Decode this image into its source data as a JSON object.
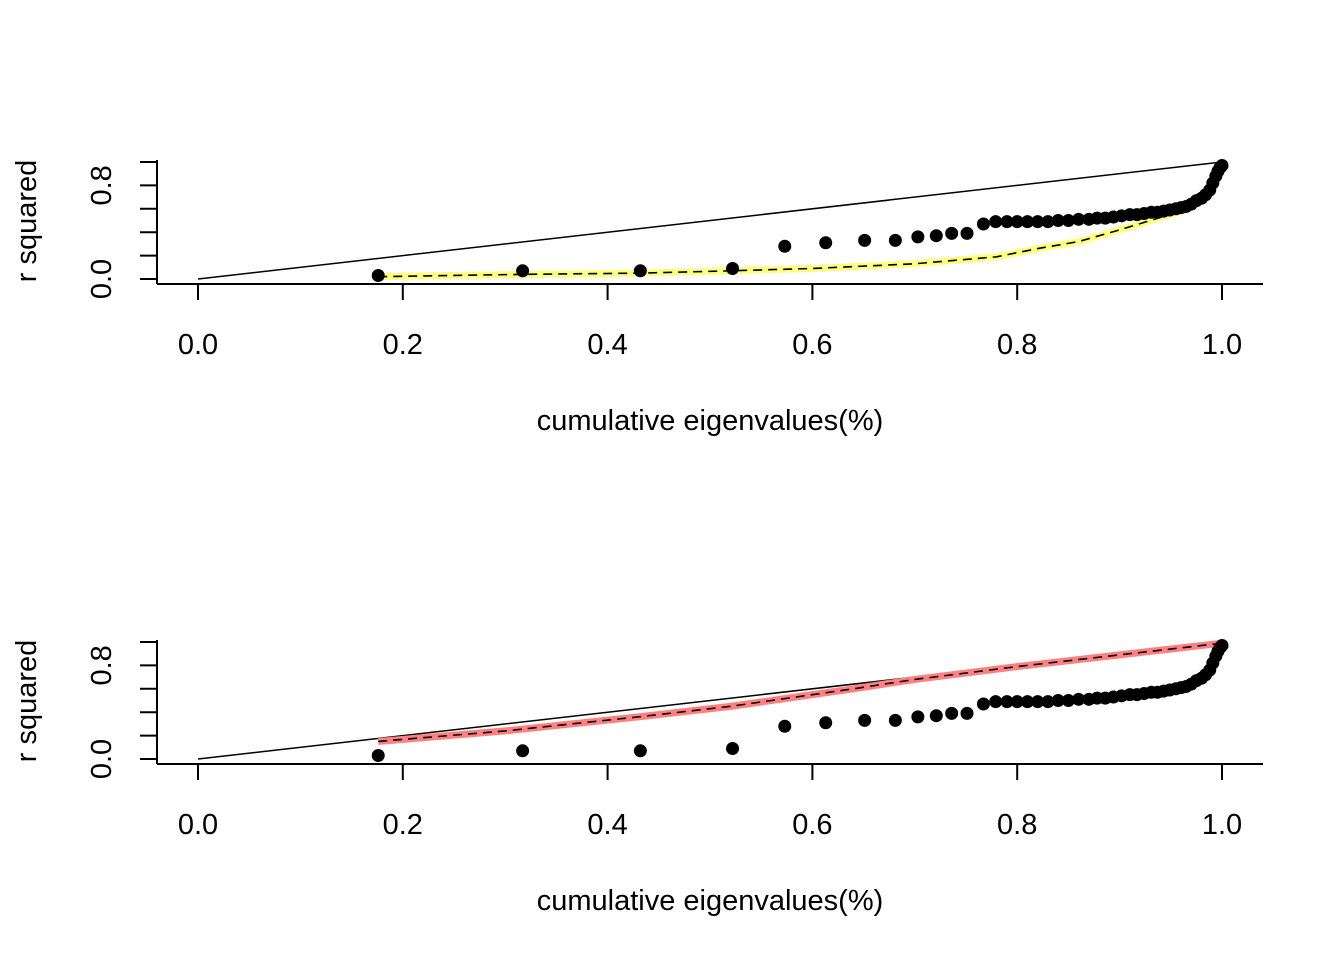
{
  "chart_data": [
    {
      "type": "scatter",
      "title": "",
      "xlabel": "cumulative eigenvalues(%)",
      "ylabel": "r squared",
      "xlim": [
        0.0,
        1.0
      ],
      "ylim": [
        0.0,
        1.0
      ],
      "x_ticks": [
        "0.0",
        "0.2",
        "0.4",
        "0.6",
        "0.8",
        "1.0"
      ],
      "y_tick_values": [
        0.0,
        0.2,
        0.4,
        0.6,
        0.8,
        1.0
      ],
      "y_tick_labels": [
        "0.0",
        "0.8"
      ],
      "grid": false,
      "reference_line": {
        "name": "diagonal y = x",
        "x": [
          0,
          1
        ],
        "y": [
          0,
          1
        ],
        "color": "#000000"
      },
      "band_color": "#ffff80",
      "band_line": {
        "x": [
          0.176,
          0.32,
          0.43,
          0.52,
          0.6,
          0.7,
          0.78,
          0.82,
          0.86,
          0.9,
          0.93,
          0.96,
          0.98,
          0.99,
          1.0
        ],
        "y": [
          0.02,
          0.04,
          0.05,
          0.07,
          0.09,
          0.13,
          0.19,
          0.26,
          0.32,
          0.42,
          0.5,
          0.58,
          0.68,
          0.8,
          0.97
        ]
      },
      "points": {
        "x": [
          0.176,
          0.317,
          0.432,
          0.522,
          0.573,
          0.613,
          0.651,
          0.681,
          0.703,
          0.721,
          0.736,
          0.751,
          0.767,
          0.779,
          0.79,
          0.8,
          0.81,
          0.82,
          0.83,
          0.84,
          0.85,
          0.86,
          0.87,
          0.878,
          0.886,
          0.894,
          0.902,
          0.91,
          0.917,
          0.924,
          0.931,
          0.937,
          0.943,
          0.949,
          0.955,
          0.96,
          0.965,
          0.97,
          0.975,
          0.98,
          0.984,
          0.988,
          0.991,
          0.994,
          0.996,
          0.998,
          1.0
        ],
        "y": [
          0.03,
          0.07,
          0.07,
          0.09,
          0.28,
          0.31,
          0.33,
          0.33,
          0.36,
          0.37,
          0.39,
          0.39,
          0.47,
          0.49,
          0.49,
          0.49,
          0.49,
          0.49,
          0.49,
          0.5,
          0.5,
          0.51,
          0.51,
          0.52,
          0.52,
          0.53,
          0.54,
          0.55,
          0.55,
          0.56,
          0.57,
          0.57,
          0.58,
          0.59,
          0.6,
          0.61,
          0.62,
          0.64,
          0.67,
          0.69,
          0.72,
          0.76,
          0.82,
          0.88,
          0.92,
          0.95,
          0.97
        ]
      }
    },
    {
      "type": "scatter",
      "title": "",
      "xlabel": "cumulative eigenvalues(%)",
      "ylabel": "r squared",
      "xlim": [
        0.0,
        1.0
      ],
      "ylim": [
        0.0,
        1.0
      ],
      "x_ticks": [
        "0.0",
        "0.2",
        "0.4",
        "0.6",
        "0.8",
        "1.0"
      ],
      "y_tick_values": [
        0.0,
        0.2,
        0.4,
        0.6,
        0.8,
        1.0
      ],
      "y_tick_labels": [
        "0.0",
        "0.8"
      ],
      "grid": false,
      "reference_line": {
        "name": "diagonal y = x",
        "x": [
          0,
          1
        ],
        "y": [
          0,
          1
        ],
        "color": "#000000"
      },
      "band_color": "#ff8080",
      "band_line": {
        "x": [
          0.176,
          0.3,
          0.43,
          0.52,
          0.6,
          0.64,
          0.7,
          0.8,
          0.9,
          1.0
        ],
        "y": [
          0.15,
          0.24,
          0.36,
          0.45,
          0.55,
          0.6,
          0.68,
          0.79,
          0.89,
          0.99
        ]
      },
      "points": {
        "x": [
          0.176,
          0.317,
          0.432,
          0.522,
          0.573,
          0.613,
          0.651,
          0.681,
          0.703,
          0.721,
          0.736,
          0.751,
          0.767,
          0.779,
          0.79,
          0.8,
          0.81,
          0.82,
          0.83,
          0.84,
          0.85,
          0.86,
          0.87,
          0.878,
          0.886,
          0.894,
          0.902,
          0.91,
          0.917,
          0.924,
          0.931,
          0.937,
          0.943,
          0.949,
          0.955,
          0.96,
          0.965,
          0.97,
          0.975,
          0.98,
          0.984,
          0.988,
          0.991,
          0.994,
          0.996,
          0.998,
          1.0
        ],
        "y": [
          0.03,
          0.07,
          0.07,
          0.09,
          0.28,
          0.31,
          0.33,
          0.33,
          0.36,
          0.37,
          0.39,
          0.39,
          0.47,
          0.49,
          0.49,
          0.49,
          0.49,
          0.49,
          0.49,
          0.5,
          0.5,
          0.51,
          0.51,
          0.52,
          0.52,
          0.53,
          0.54,
          0.55,
          0.55,
          0.56,
          0.57,
          0.57,
          0.58,
          0.59,
          0.6,
          0.61,
          0.62,
          0.64,
          0.67,
          0.69,
          0.72,
          0.76,
          0.82,
          0.88,
          0.92,
          0.95,
          0.97
        ]
      }
    }
  ]
}
